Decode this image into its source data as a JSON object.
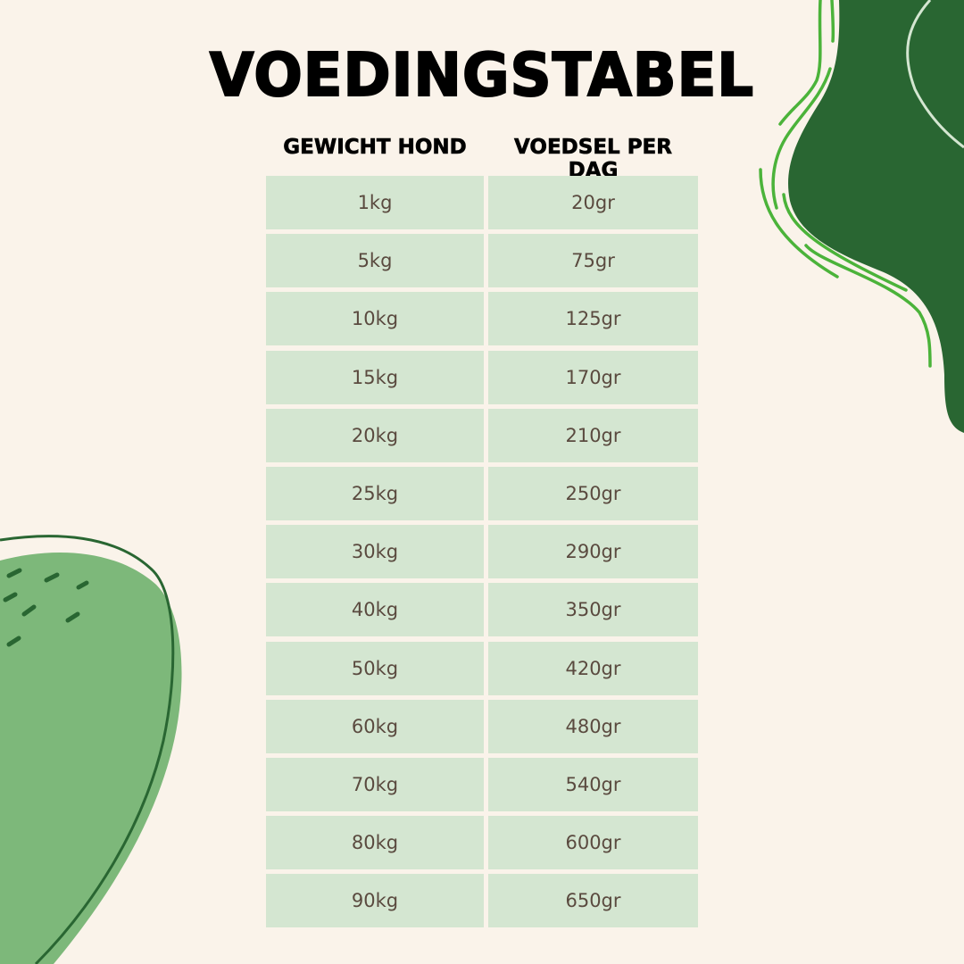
{
  "title": "VOEDINGSTABEL",
  "columns": [
    "GEWICHT HOND",
    "VOEDSEL PER DAG"
  ],
  "rows": [
    [
      "1kg",
      "20gr"
    ],
    [
      "5kg",
      "75gr"
    ],
    [
      "10kg",
      "125gr"
    ],
    [
      "15kg",
      "170gr"
    ],
    [
      "20kg",
      "210gr"
    ],
    [
      "25kg",
      "250gr"
    ],
    [
      "30kg",
      "290gr"
    ],
    [
      "40kg",
      "350gr"
    ],
    [
      "50kg",
      "420gr"
    ],
    [
      "60kg",
      "480gr"
    ],
    [
      "70kg",
      "540gr"
    ],
    [
      "80kg",
      "600gr"
    ],
    [
      "90kg",
      "650gr"
    ]
  ],
  "colors": {
    "background": "#faf3ea",
    "cell": "#d4e6d1",
    "dark_green": "#296632",
    "bright_green": "#4bb33a",
    "light_green": "#7db87a",
    "text": "#5a4a3f"
  }
}
